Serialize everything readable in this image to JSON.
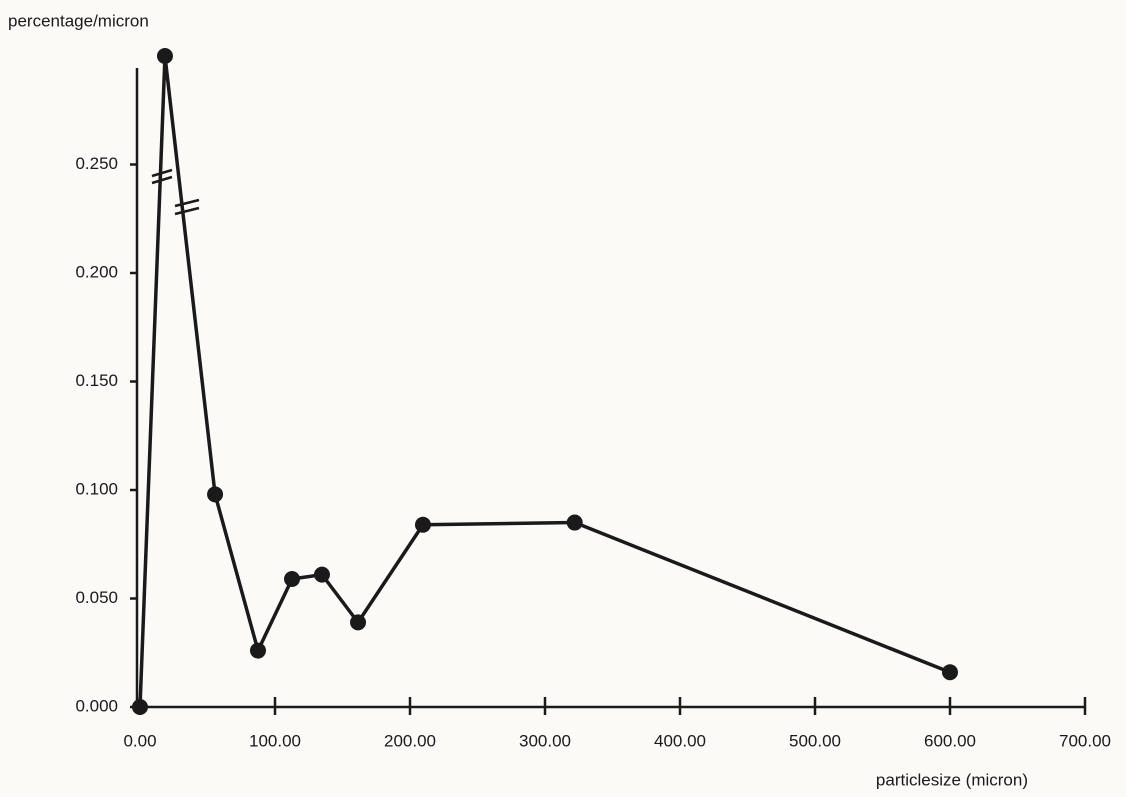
{
  "chart_data": {
    "type": "line",
    "y_label": "percentage/micron",
    "x_label": "particlesize (micron)",
    "x": [
      0,
      18.5,
      55.6,
      87.4,
      112.6,
      134.8,
      161.5,
      209.6,
      322,
      600
    ],
    "series": [
      {
        "name": "percentage/micron",
        "color": "#1a1a1a",
        "values": [
          0,
          0.3,
          0.098,
          0.026,
          0.059,
          0.061,
          0.039,
          0.084,
          0.085,
          0.016
        ]
      }
    ],
    "xlim": [
      0,
      700
    ],
    "xticks": [
      {
        "value": 0,
        "label": "0.00"
      },
      {
        "value": 100,
        "label": "100.00"
      },
      {
        "value": 200,
        "label": "200.00"
      },
      {
        "value": 300,
        "label": "300.00"
      },
      {
        "value": 400,
        "label": "400.00"
      },
      {
        "value": 500,
        "label": "500.00"
      },
      {
        "value": 600,
        "label": "600.00"
      },
      {
        "value": 700,
        "label": "700.00"
      }
    ],
    "ylim": [
      0,
      0.3
    ],
    "yticks": [
      {
        "value": 0,
        "label": "0.000"
      },
      {
        "value": 0.05,
        "label": "0.050"
      },
      {
        "value": 0.1,
        "label": "0.100"
      },
      {
        "value": 0.15,
        "label": "0.150"
      },
      {
        "value": 0.2,
        "label": "0.200"
      },
      {
        "value": 0.25,
        "label": "0.250"
      }
    ],
    "grid": false
  }
}
